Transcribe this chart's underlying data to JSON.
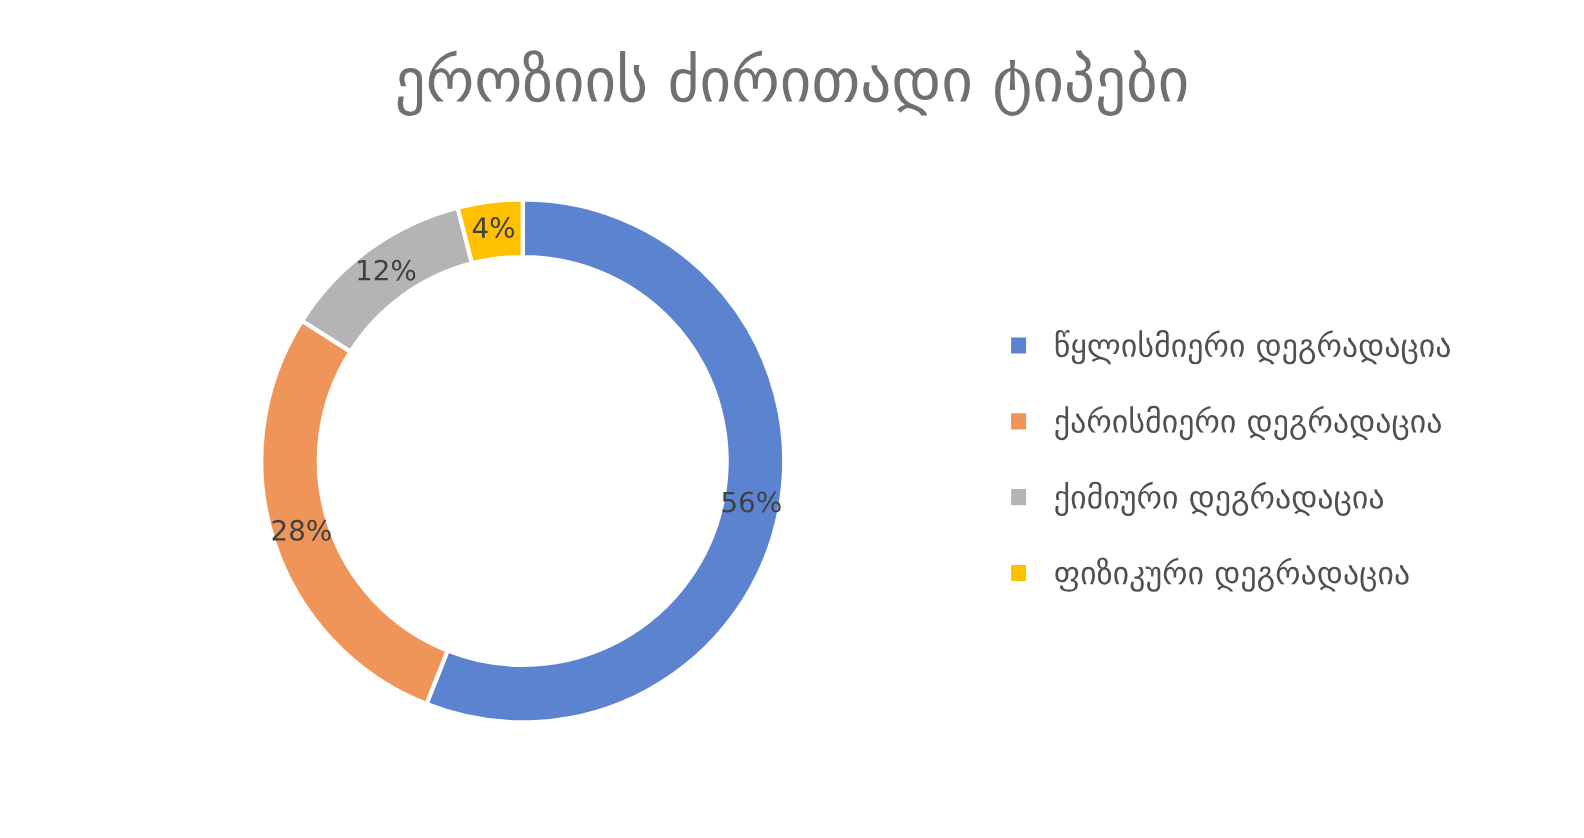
{
  "chart_data": {
    "type": "donut",
    "title": "ეროზიის ძირითადი ტიპები",
    "categories": [
      "წყლისმიერი დეგრადაცია",
      "ქარისმიერი დეგრადაცია",
      "ქიმიური დეგრადაცია",
      "ფიზიკური დეგრადაცია"
    ],
    "values": [
      56,
      28,
      12,
      4
    ],
    "colors": [
      "#5b83cf",
      "#f0955a",
      "#b4b4b4",
      "#ffc000"
    ],
    "value_labels": [
      "56%",
      "28%",
      "12%",
      "4%"
    ],
    "legend": "right"
  }
}
